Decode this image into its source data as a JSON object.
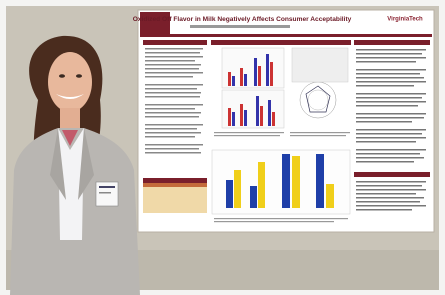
{
  "poster": {
    "title": "Oxidized Off Flavor in Milk Negatively Affects Consumer Acceptability",
    "logo": "VirginiaTech"
  }
}
